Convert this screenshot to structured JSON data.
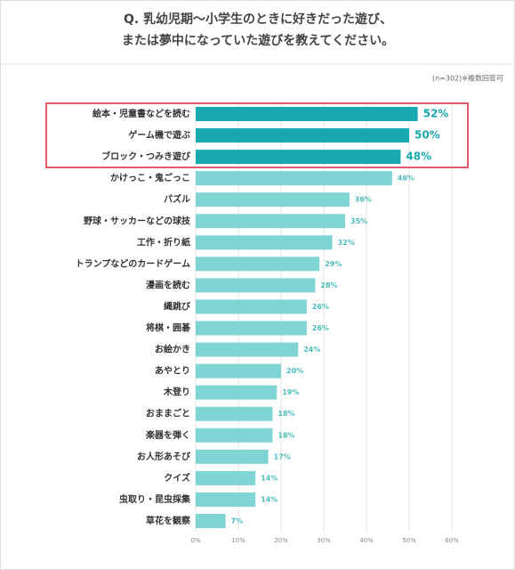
{
  "chart_data": {
    "type": "hbar",
    "title": [
      "Q. 乳幼児期～小学生のときに好きだった遊び、",
      "または夢中になっていた遊びを教えてください。"
    ],
    "note": "(n=302)※複数回答可",
    "categories": [
      "絵本・児童書などを読む",
      "ゲーム機で遊ぶ",
      "ブロック・つみき遊び",
      "かけっこ・鬼ごっこ",
      "パズル",
      "野球・サッカーなどの球技",
      "工作・折り紙",
      "トランプなどのカードゲーム",
      "漫画を読む",
      "縄跳び",
      "将棋・囲碁",
      "お絵かき",
      "あやとり",
      "木登り",
      "おままごと",
      "楽器を弾く",
      "お人形あそび",
      "クイズ",
      "虫取り・昆虫採集",
      "草花を観察"
    ],
    "values": [
      52,
      50,
      48,
      46,
      36,
      35,
      32,
      29,
      28,
      26,
      26,
      24,
      20,
      19,
      18,
      18,
      17,
      14,
      14,
      7
    ],
    "value_labels": [
      "52%",
      "50%",
      "48%",
      "46%",
      "36%",
      "35%",
      "32%",
      "29%",
      "28%",
      "26%",
      "26%",
      "24%",
      "20%",
      "19%",
      "18%",
      "18%",
      "17%",
      "14%",
      "14%",
      "7%"
    ],
    "colors": [
      "#17a9ad",
      "#17a9ad",
      "#17a9ad",
      "#7fd4d4",
      "#7fd4d4",
      "#7fd4d4",
      "#7fd4d4",
      "#7fd4d4",
      "#7fd4d4",
      "#7fd4d4",
      "#7fd4d4",
      "#7fd4d4",
      "#7fd4d4",
      "#7fd4d4",
      "#7fd4d4",
      "#7fd4d4",
      "#7fd4d4",
      "#7fd4d4",
      "#7fd4d4",
      "#7fd4d4"
    ],
    "xlim": [
      0,
      60
    ],
    "xticks": [
      {
        "value": 0,
        "label": "0%"
      },
      {
        "value": 10,
        "label": "10%"
      },
      {
        "value": 20,
        "label": "20%"
      },
      {
        "value": 30,
        "label": "30%"
      },
      {
        "value": 40,
        "label": "40%"
      },
      {
        "value": 50,
        "label": "50%"
      },
      {
        "value": 60,
        "label": "60%"
      }
    ],
    "grid": true
  }
}
